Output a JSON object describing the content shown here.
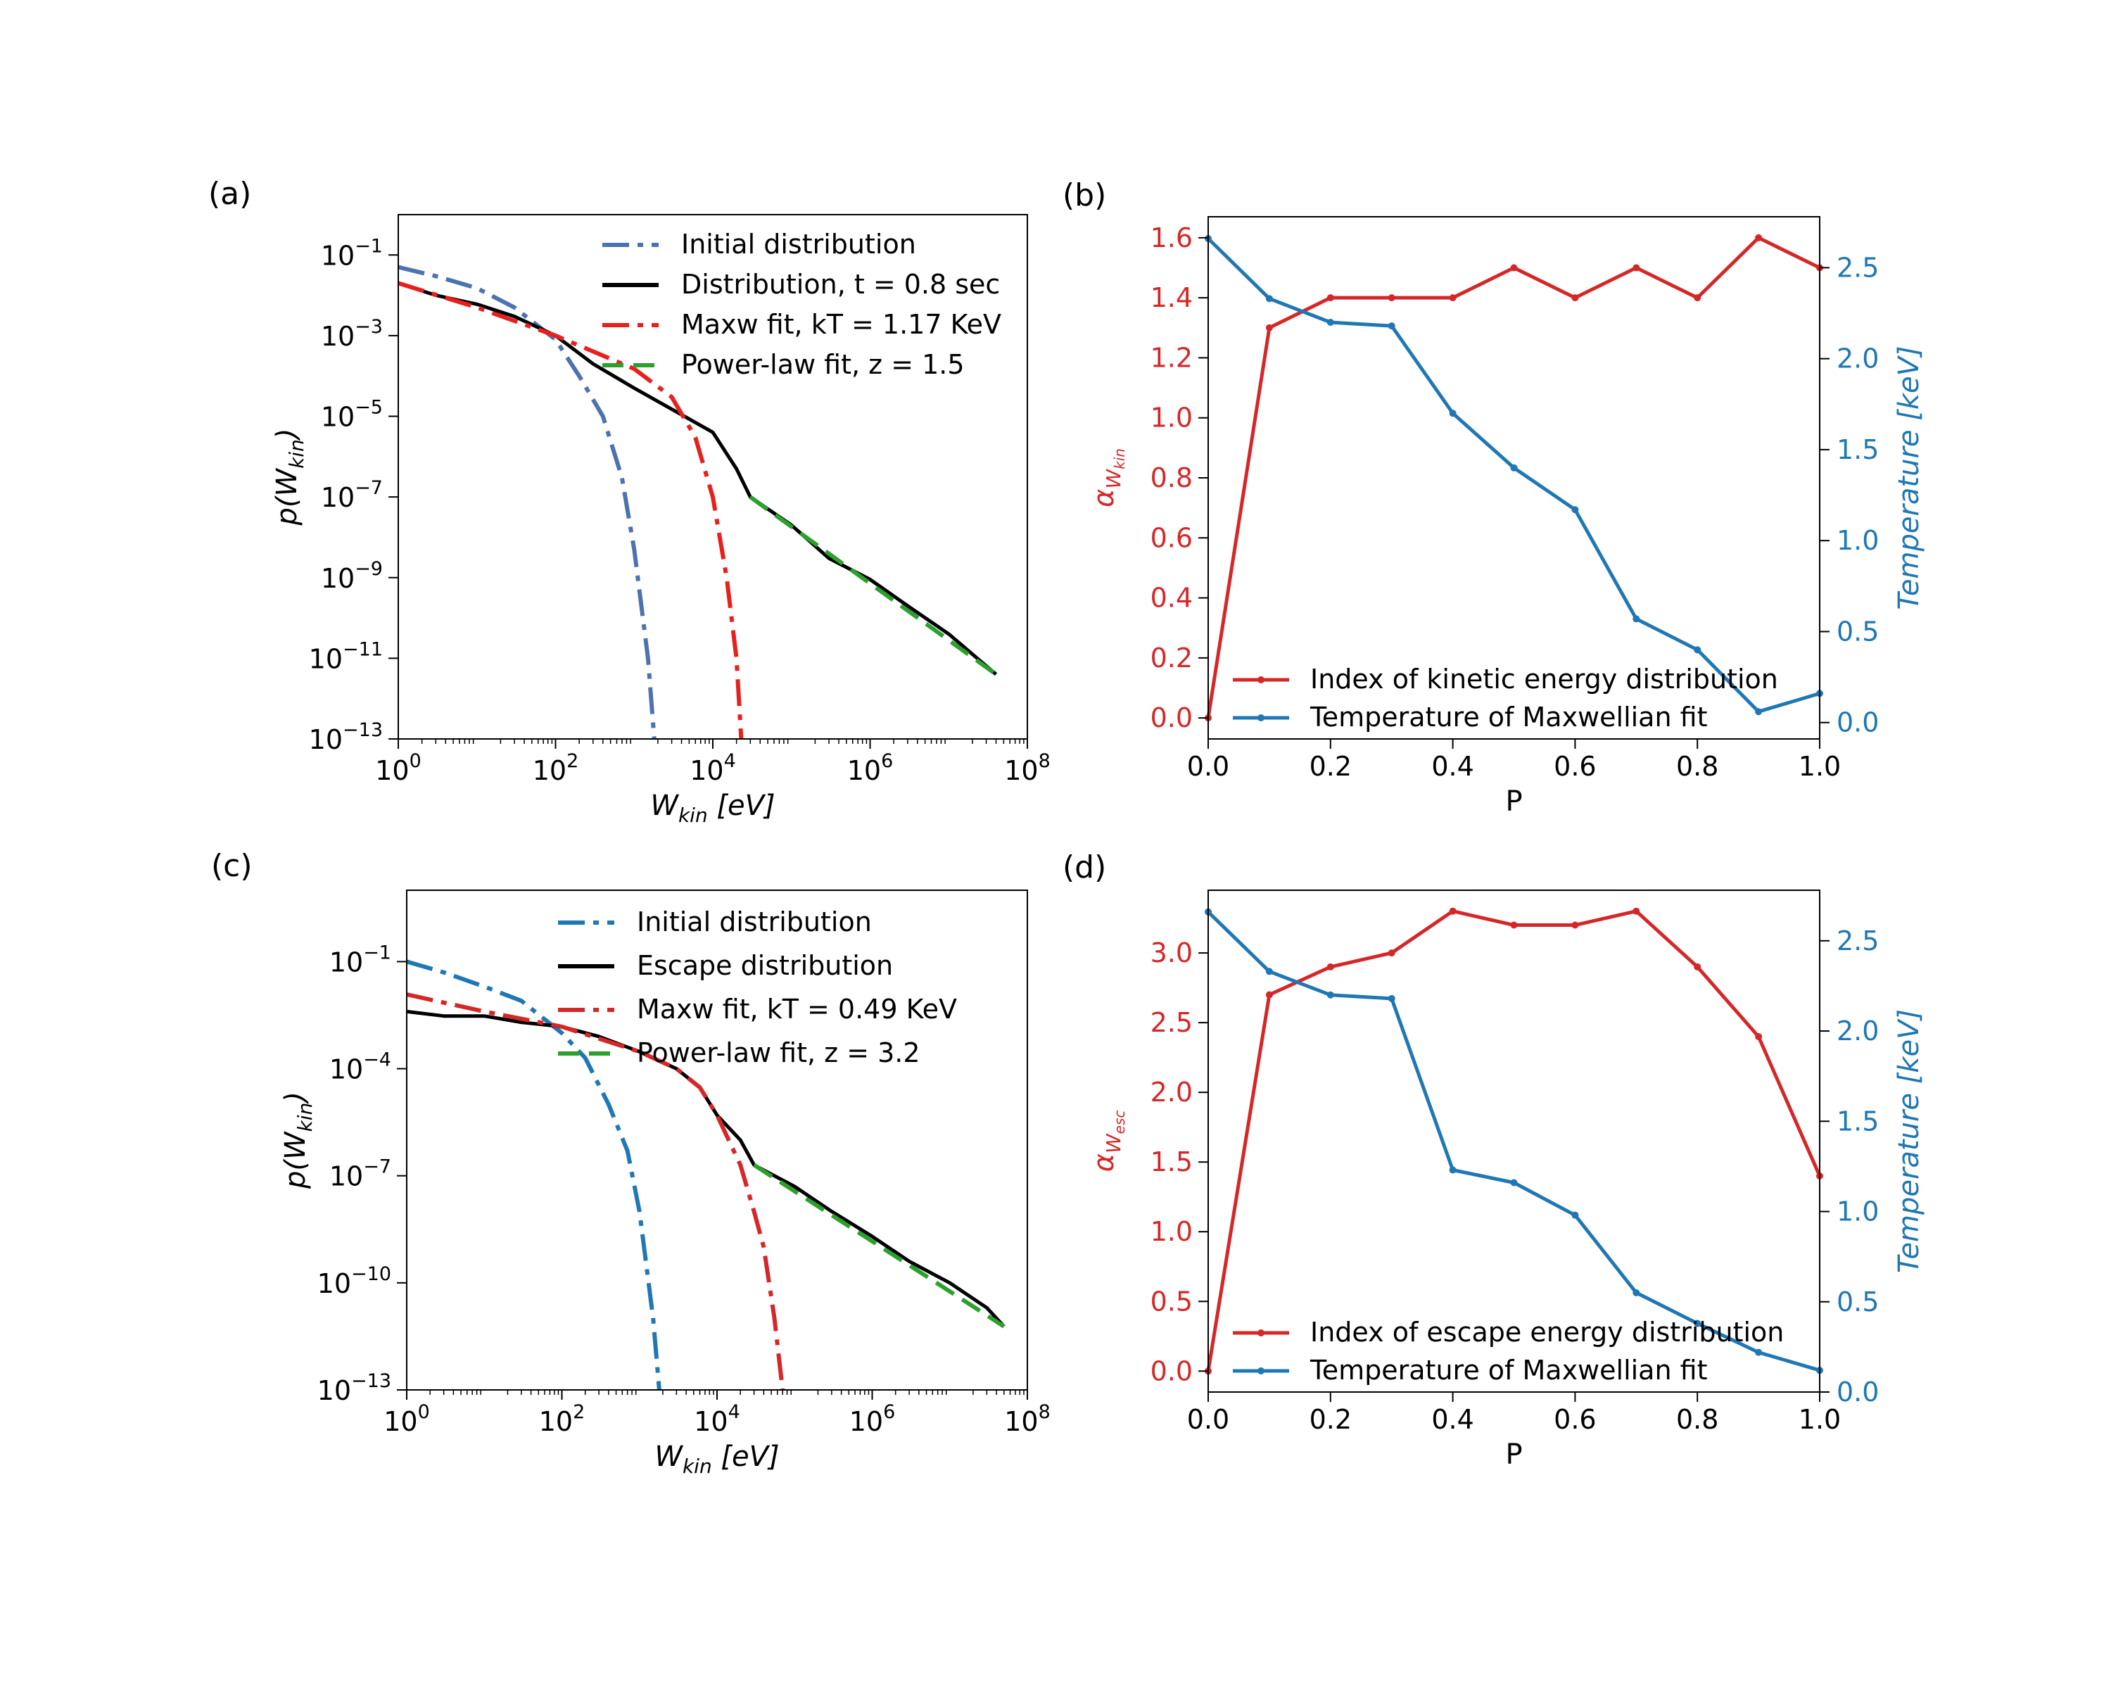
{
  "chart_data": [
    {
      "id": "a",
      "panel_label": "(a)",
      "type": "line",
      "xscale": "log",
      "yscale": "log",
      "xlim": [
        1,
        100000000
      ],
      "ylim": [
        1e-13,
        1
      ],
      "xlabel": "W",
      "xlabel_sub": "kin",
      "xlabel_unit": "[eV]",
      "ylabel": "p(W",
      "ylabel_sub": "kin",
      "ylabel_close": ")",
      "xticks": [
        {
          "value": 1,
          "label": "10",
          "exp": "0"
        },
        {
          "value": 100,
          "label": "10",
          "exp": "2"
        },
        {
          "value": 10000,
          "label": "10",
          "exp": "4"
        },
        {
          "value": 1000000,
          "label": "10",
          "exp": "6"
        },
        {
          "value": 100000000,
          "label": "10",
          "exp": "8"
        }
      ],
      "yticks": [
        {
          "value": 0.1,
          "label": "10",
          "exp": "−1"
        },
        {
          "value": 0.001,
          "label": "10",
          "exp": "−3"
        },
        {
          "value": 1e-05,
          "label": "10",
          "exp": "−5"
        },
        {
          "value": 1e-07,
          "label": "10",
          "exp": "−7"
        },
        {
          "value": 1e-09,
          "label": "10",
          "exp": "−9"
        },
        {
          "value": 1e-11,
          "label": "10",
          "exp": "−11"
        },
        {
          "value": 1e-13,
          "label": "10",
          "exp": "−13"
        }
      ],
      "legend_position": "upper-right",
      "series": [
        {
          "name": "Initial distribution",
          "color": "#4c72b0",
          "dash": "dashdot",
          "x": [
            1,
            3,
            10,
            30,
            100,
            200,
            400,
            700,
            1000,
            1500,
            1800
          ],
          "y": [
            0.05,
            0.03,
            0.015,
            0.005,
            0.0008,
            0.0001,
            1e-05,
            3e-07,
            5e-09,
            1e-11,
            1e-13
          ]
        },
        {
          "name": "Distribution, t = 0.8 sec",
          "color": "#000000",
          "dash": "solid",
          "x": [
            1,
            3,
            10,
            30,
            100,
            300,
            1000,
            3000,
            10000,
            20000,
            30000,
            100000,
            300000,
            1000000,
            3000000,
            10000000,
            40000000
          ],
          "y": [
            0.02,
            0.01,
            0.006,
            0.003,
            0.001,
            0.0002,
            5e-05,
            1.5e-05,
            4e-06,
            5e-07,
            1e-07,
            2e-08,
            3e-09,
            9e-10,
            2e-10,
            4e-11,
            4e-12
          ]
        },
        {
          "name": "Maxw fit, kT = 1.17 KeV",
          "color": "#e8201d",
          "dash": "dashdot",
          "x": [
            1,
            10,
            100,
            1000,
            3000,
            6000,
            10000,
            15000,
            20000,
            23000
          ],
          "y": [
            0.02,
            0.005,
            0.001,
            0.00015,
            3e-05,
            3e-06,
            1e-07,
            1e-09,
            1e-11,
            1e-13
          ]
        },
        {
          "name": "Power-law fit, z = 1.5",
          "color": "#2ca02c",
          "dash": "dashed",
          "x": [
            30000,
            40000000
          ],
          "y": [
            1e-07,
            4e-12
          ]
        }
      ]
    },
    {
      "id": "b",
      "panel_label": "(b)",
      "type": "line",
      "xlim": [
        0,
        1
      ],
      "ylim": [
        -0.07,
        1.67
      ],
      "y2lim": [
        -0.09,
        2.78
      ],
      "xlabel": "P",
      "ylabel": "α",
      "ylabel_sub": "W",
      "ylabel_sub2": "kin",
      "y2label": "Temperature [keV]",
      "xticks": [
        "0.0",
        "0.2",
        "0.4",
        "0.6",
        "0.8",
        "1.0"
      ],
      "yticks": [
        "0.0",
        "0.2",
        "0.4",
        "0.6",
        "0.8",
        "1.0",
        "1.2",
        "1.4",
        "1.6"
      ],
      "y2ticks": [
        "0.0",
        "0.5",
        "1.0",
        "1.5",
        "2.0",
        "2.5"
      ],
      "legend_position": "lower-left",
      "series": [
        {
          "name": "Index of kinetic energy distribution",
          "color": "#d62728",
          "axis": "left",
          "x": [
            0,
            0.1,
            0.2,
            0.3,
            0.4,
            0.5,
            0.6,
            0.7,
            0.8,
            0.9,
            1.0
          ],
          "y": [
            0.0,
            1.3,
            1.4,
            1.4,
            1.4,
            1.5,
            1.4,
            1.5,
            1.4,
            1.6,
            1.5
          ]
        },
        {
          "name": "Temperature of Maxwellian fit",
          "color": "#1f77b4",
          "axis": "right",
          "x": [
            0,
            0.1,
            0.2,
            0.3,
            0.4,
            0.5,
            0.6,
            0.7,
            0.8,
            0.9,
            1.0
          ],
          "y": [
            2.66,
            2.33,
            2.2,
            2.18,
            1.7,
            1.4,
            1.17,
            0.57,
            0.4,
            0.06,
            0.16
          ]
        }
      ]
    },
    {
      "id": "c",
      "panel_label": "(c)",
      "type": "line",
      "xscale": "log",
      "yscale": "log",
      "xlim": [
        1,
        100000000
      ],
      "ylim": [
        1e-13,
        10
      ],
      "xlabel": "W",
      "xlabel_sub": "kin",
      "xlabel_unit": "[eV]",
      "ylabel": "p(W",
      "ylabel_sub": "kin",
      "ylabel_close": ")",
      "xticks": [
        {
          "value": 1,
          "label": "10",
          "exp": "0"
        },
        {
          "value": 100,
          "label": "10",
          "exp": "2"
        },
        {
          "value": 10000,
          "label": "10",
          "exp": "4"
        },
        {
          "value": 1000000,
          "label": "10",
          "exp": "6"
        },
        {
          "value": 100000000,
          "label": "10",
          "exp": "8"
        }
      ],
      "yticks": [
        {
          "value": 0.1,
          "label": "10",
          "exp": "−1"
        },
        {
          "value": 0.0001,
          "label": "10",
          "exp": "−4"
        },
        {
          "value": 1e-07,
          "label": "10",
          "exp": "−7"
        },
        {
          "value": 1e-10,
          "label": "10",
          "exp": "−10"
        },
        {
          "value": 1e-13,
          "label": "10",
          "exp": "−13"
        }
      ],
      "legend_position": "upper-right",
      "series": [
        {
          "name": "Initial distribution",
          "color": "#1f77b4",
          "dash": "dashdot",
          "x": [
            1,
            3,
            10,
            30,
            100,
            200,
            400,
            700,
            1000,
            1500,
            1800
          ],
          "y": [
            0.1,
            0.05,
            0.02,
            0.008,
            0.001,
            0.0002,
            1e-05,
            5e-07,
            1e-08,
            1e-11,
            1e-13
          ]
        },
        {
          "name": "Escape distribution",
          "color": "#000000",
          "dash": "solid",
          "x": [
            1,
            3,
            10,
            30,
            100,
            300,
            1000,
            3000,
            6000,
            10000,
            20000,
            30000,
            100000,
            300000,
            1000000,
            3000000,
            10000000,
            30000000,
            50000000
          ],
          "y": [
            0.004,
            0.003,
            0.003,
            0.002,
            0.0015,
            0.0008,
            0.0003,
            0.0001,
            3e-05,
            5e-06,
            1e-06,
            2e-07,
            5e-08,
            1e-08,
            2e-09,
            4e-10,
            1e-10,
            2e-11,
            6e-12
          ]
        },
        {
          "name": "Maxw fit, kT = 0.49 KeV",
          "color": "#d62728",
          "dash": "dashdot",
          "x": [
            1,
            10,
            100,
            1000,
            3000,
            6000,
            10000,
            20000,
            30000,
            40000,
            55000,
            70000
          ],
          "y": [
            0.012,
            0.004,
            0.0015,
            0.0003,
            0.0001,
            3e-05,
            5e-06,
            2e-07,
            1e-08,
            1e-09,
            1e-11,
            1e-13
          ]
        },
        {
          "name": "Power-law fit, z = 3.2",
          "color": "#2ca02c",
          "dash": "dashed",
          "x": [
            30000,
            50000000
          ],
          "y": [
            2e-07,
            6e-12
          ]
        }
      ]
    },
    {
      "id": "d",
      "panel_label": "(d)",
      "type": "line",
      "xlim": [
        0,
        1
      ],
      "ylim": [
        -0.15,
        3.45
      ],
      "y2lim": [
        0,
        2.78
      ],
      "xlabel": "P",
      "ylabel": "α",
      "ylabel_sub": "W",
      "ylabel_sub2": "esc",
      "y2label": "Temperature [keV]",
      "xticks": [
        "0.0",
        "0.2",
        "0.4",
        "0.6",
        "0.8",
        "1.0"
      ],
      "yticks": [
        "0.0",
        "0.5",
        "1.0",
        "1.5",
        "2.0",
        "2.5",
        "3.0"
      ],
      "y2ticks": [
        "0.0",
        "0.5",
        "1.0",
        "1.5",
        "2.0",
        "2.5"
      ],
      "legend_position": "lower-left",
      "series": [
        {
          "name": "Index of escape energy distribution",
          "color": "#d62728",
          "axis": "left",
          "x": [
            0,
            0.1,
            0.2,
            0.3,
            0.4,
            0.5,
            0.6,
            0.7,
            0.8,
            0.9,
            1.0
          ],
          "y": [
            0.0,
            2.7,
            2.9,
            3.0,
            3.3,
            3.2,
            3.2,
            3.3,
            2.9,
            2.4,
            1.4
          ]
        },
        {
          "name": "Temperature of Maxwellian fit",
          "color": "#1f77b4",
          "axis": "right",
          "x": [
            0,
            0.1,
            0.2,
            0.3,
            0.4,
            0.5,
            0.6,
            0.7,
            0.8,
            0.9,
            1.0
          ],
          "y": [
            2.66,
            2.33,
            2.2,
            2.18,
            1.23,
            1.16,
            0.98,
            0.55,
            0.38,
            0.22,
            0.12
          ]
        }
      ]
    }
  ]
}
